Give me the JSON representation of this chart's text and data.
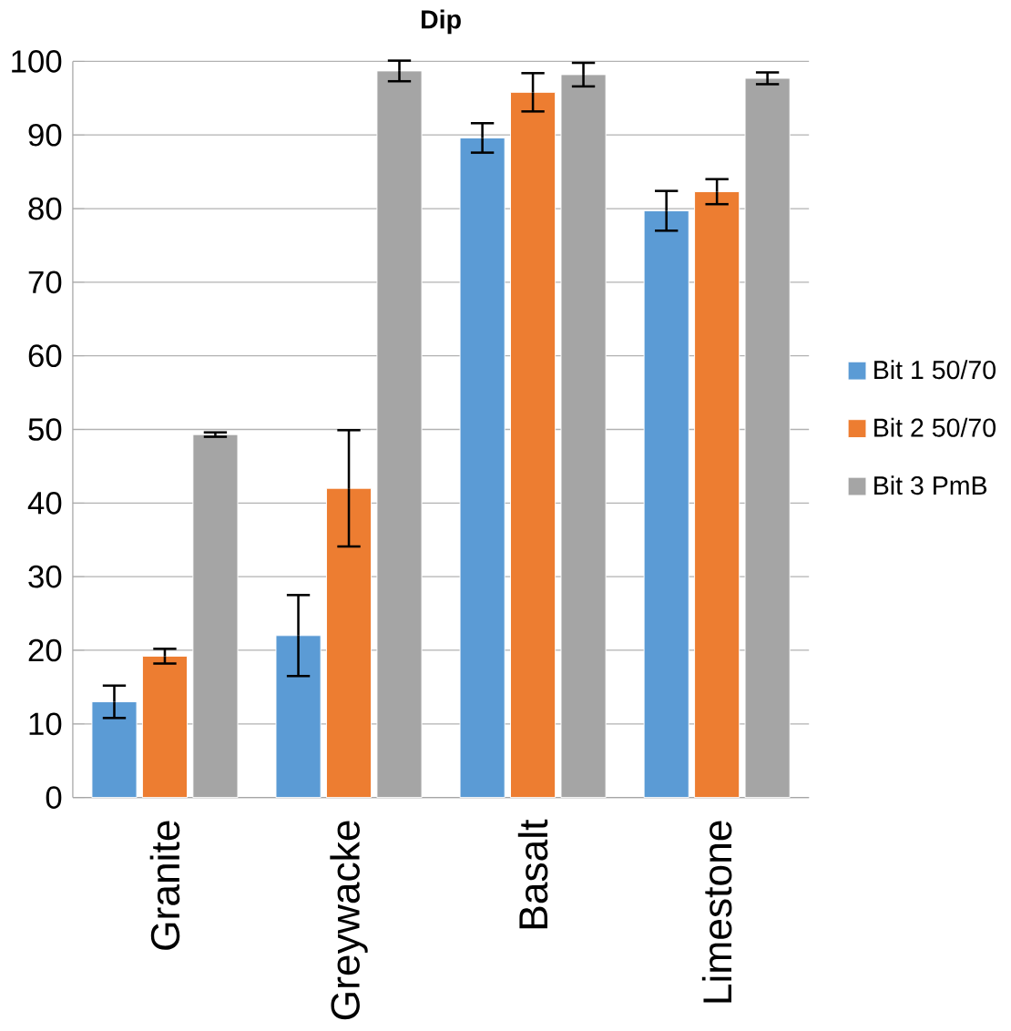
{
  "chart_data": {
    "type": "bar",
    "title": "Dip",
    "categories": [
      "Granite",
      "Greywacke",
      "Basalt",
      "Limestone"
    ],
    "series": [
      {
        "name": "Bit 1 50/70",
        "color": "#5b9bd5",
        "values": [
          13,
          22,
          89.6,
          79.7
        ],
        "errors": [
          2.2,
          5.5,
          2,
          2.7
        ]
      },
      {
        "name": "Bit 2 50/70",
        "color": "#ed7d31",
        "values": [
          19.2,
          42,
          95.8,
          82.3
        ],
        "errors": [
          1,
          7.9,
          2.6,
          1.7
        ]
      },
      {
        "name": "Bit 3 PmB",
        "color": "#a5a5a5",
        "values": [
          49.3,
          98.7,
          98.2,
          97.7
        ],
        "errors": [
          0.3,
          1.4,
          1.6,
          0.8
        ]
      }
    ],
    "ylim": [
      0,
      100
    ],
    "yticks": [
      0,
      10,
      20,
      30,
      40,
      50,
      60,
      70,
      80,
      90,
      100
    ],
    "grid": "y",
    "legend": "right"
  }
}
